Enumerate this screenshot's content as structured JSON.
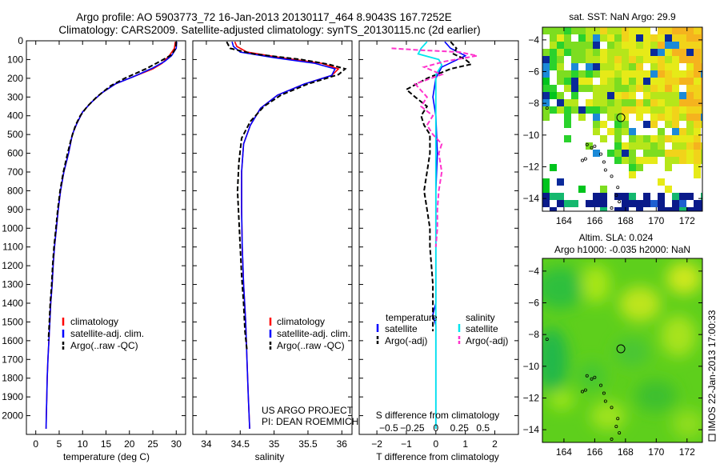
{
  "title_line1": "Argo profile: AO 5903773_72 16-Jan-2013 20130117_464 8.9043S 167.7252E",
  "title_line2": "Climatology: CARS2009. Satellite-adjusted climatology: synTS_20130115.nc (2d earlier)",
  "credit_line1": "US ARGO PROJECT",
  "credit_line2": "PI: DEAN ROEMMICH",
  "side_text": "IMOS 22-Jan-2013 17:00:33",
  "colors": {
    "clim": "#ff0000",
    "sat": "#0000ff",
    "argo": "#000000",
    "sat_s": "#00e5ee",
    "argo_s": "#ff33cc"
  },
  "chart_data": [
    {
      "id": "temperature",
      "type": "line",
      "xlabel": "temperature (deg C)",
      "xlim": [
        -2,
        32
      ],
      "ylim": [
        2100,
        0
      ],
      "xticks": [
        0,
        5,
        10,
        15,
        20,
        25,
        30
      ],
      "xtick_labels": [
        "0",
        "5",
        "10",
        "15",
        "20",
        "25",
        "30"
      ],
      "yticks": [
        0,
        100,
        200,
        300,
        400,
        500,
        600,
        700,
        800,
        900,
        1000,
        1100,
        1200,
        1300,
        1400,
        1500,
        1600,
        1700,
        1800,
        1900,
        2000
      ],
      "ytick_labels": [
        "0",
        "100",
        "200",
        "300",
        "400",
        "500",
        "600",
        "700",
        "800",
        "900",
        "1000",
        "1100",
        "1200",
        "1300",
        "1400",
        "1500",
        "1600",
        "1700",
        "1800",
        "1900",
        "2000"
      ],
      "legend": [
        "climatology",
        "satellite-adj. clim.",
        "Argo(..raw -QC)"
      ],
      "series": [
        {
          "name": "climatology",
          "style": "clim",
          "points": [
            [
              29.8,
              5
            ],
            [
              29.6,
              40
            ],
            [
              28.5,
              80
            ],
            [
              27,
              120
            ],
            [
              25,
              150
            ],
            [
              21,
              190
            ],
            [
              17,
              230
            ],
            [
              14,
              280
            ],
            [
              11.8,
              330
            ],
            [
              10,
              380
            ],
            [
              8.8,
              440
            ],
            [
              7.8,
              500
            ],
            [
              7,
              600
            ],
            [
              6,
              700
            ],
            [
              5.3,
              800
            ],
            [
              4.8,
              900
            ],
            [
              4.4,
              1000
            ],
            [
              4,
              1100
            ],
            [
              3.7,
              1200
            ],
            [
              3.5,
              1300
            ],
            [
              3.2,
              1400
            ],
            [
              3,
              1500
            ],
            [
              2.8,
              1600
            ],
            [
              2.6,
              1700
            ],
            [
              2.45,
              1800
            ],
            [
              2.35,
              1900
            ],
            [
              2.25,
              2000
            ],
            [
              2.2,
              2070
            ]
          ]
        },
        {
          "name": "satellite-adj. clim.",
          "style": "sat",
          "points": [
            [
              30.1,
              5
            ],
            [
              30,
              40
            ],
            [
              29,
              80
            ],
            [
              27.5,
              110
            ],
            [
              25,
              145
            ],
            [
              21,
              190
            ],
            [
              17,
              230
            ],
            [
              14,
              280
            ],
            [
              11.8,
              330
            ],
            [
              10,
              380
            ],
            [
              8.8,
              440
            ],
            [
              7.8,
              500
            ],
            [
              7,
              600
            ],
            [
              6,
              700
            ],
            [
              5.3,
              800
            ],
            [
              4.8,
              900
            ],
            [
              4.4,
              1000
            ],
            [
              4,
              1100
            ],
            [
              3.7,
              1200
            ],
            [
              3.5,
              1300
            ],
            [
              3.2,
              1400
            ],
            [
              3,
              1500
            ],
            [
              2.8,
              1600
            ],
            [
              2.6,
              1700
            ],
            [
              2.45,
              1800
            ],
            [
              2.35,
              1900
            ],
            [
              2.25,
              2000
            ],
            [
              2.2,
              2070
            ]
          ]
        },
        {
          "name": "Argo(..raw -QC)",
          "style": "argo",
          "points": [
            [
              30,
              5
            ],
            [
              29.9,
              40
            ],
            [
              29,
              75
            ],
            [
              26.5,
              110
            ],
            [
              23.5,
              150
            ],
            [
              19,
              200
            ],
            [
              16,
              240
            ],
            [
              13,
              300
            ],
            [
              11,
              350
            ],
            [
              9.5,
              400
            ],
            [
              8.5,
              450
            ],
            [
              7.6,
              520
            ],
            [
              6.8,
              600
            ],
            [
              5.9,
              700
            ],
            [
              5.2,
              800
            ],
            [
              4.7,
              900
            ],
            [
              4.3,
              1000
            ],
            [
              3.9,
              1100
            ],
            [
              3.6,
              1200
            ],
            [
              3.4,
              1300
            ],
            [
              3.1,
              1400
            ],
            [
              2.9,
              1500
            ],
            [
              2.7,
              1600
            ]
          ]
        }
      ]
    },
    {
      "id": "salinity",
      "type": "line",
      "xlabel": "salinity",
      "xlim": [
        33.8,
        36.15
      ],
      "ylim": [
        2100,
        0
      ],
      "xticks": [
        34,
        34.5,
        35,
        35.5,
        36
      ],
      "xtick_labels": [
        "34",
        "34.5",
        "35",
        "35.5",
        "36"
      ],
      "legend": [
        "climatology",
        "satellite-adj. clim.",
        "Argo(..raw -QC)"
      ],
      "series": [
        {
          "name": "climatology",
          "style": "clim",
          "points": [
            [
              34.42,
              5
            ],
            [
              34.45,
              30
            ],
            [
              34.6,
              60
            ],
            [
              35.1,
              90
            ],
            [
              35.7,
              120
            ],
            [
              35.95,
              150
            ],
            [
              35.85,
              185
            ],
            [
              35.45,
              230
            ],
            [
              35.05,
              290
            ],
            [
              34.8,
              360
            ],
            [
              34.65,
              450
            ],
            [
              34.55,
              550
            ],
            [
              34.52,
              700
            ],
            [
              34.52,
              900
            ],
            [
              34.53,
              1100
            ],
            [
              34.55,
              1300
            ],
            [
              34.58,
              1500
            ],
            [
              34.6,
              1700
            ],
            [
              34.62,
              1900
            ],
            [
              34.64,
              2070
            ]
          ]
        },
        {
          "name": "satellite-adj. clim.",
          "style": "sat",
          "points": [
            [
              34.38,
              5
            ],
            [
              34.4,
              30
            ],
            [
              34.5,
              60
            ],
            [
              35,
              90
            ],
            [
              35.6,
              120
            ],
            [
              35.9,
              150
            ],
            [
              35.85,
              185
            ],
            [
              35.45,
              230
            ],
            [
              35.05,
              290
            ],
            [
              34.8,
              360
            ],
            [
              34.65,
              450
            ],
            [
              34.55,
              550
            ],
            [
              34.52,
              700
            ],
            [
              34.52,
              900
            ],
            [
              34.53,
              1100
            ],
            [
              34.55,
              1300
            ],
            [
              34.58,
              1500
            ],
            [
              34.6,
              1700
            ],
            [
              34.62,
              1900
            ],
            [
              34.64,
              2070
            ]
          ]
        },
        {
          "name": "Argo(..raw -QC)",
          "style": "argo",
          "points": [
            [
              34.3,
              5
            ],
            [
              34.35,
              40
            ],
            [
              34.7,
              70
            ],
            [
              35.4,
              100
            ],
            [
              35.8,
              125
            ],
            [
              36.05,
              150
            ],
            [
              35.95,
              180
            ],
            [
              35.5,
              230
            ],
            [
              35.1,
              290
            ],
            [
              34.85,
              350
            ],
            [
              34.65,
              430
            ],
            [
              34.52,
              520
            ],
            [
              34.48,
              650
            ],
            [
              34.46,
              800
            ],
            [
              34.48,
              950
            ],
            [
              34.5,
              1100
            ],
            [
              34.52,
              1250
            ],
            [
              34.55,
              1400
            ],
            [
              34.57,
              1550
            ],
            [
              34.6,
              1650
            ]
          ]
        }
      ]
    },
    {
      "id": "difference",
      "type": "line",
      "xlabel": "T difference from climatology",
      "xlabel2": "S difference from climatology",
      "xlim": [
        -2.6,
        2.8
      ],
      "ylim": [
        2100,
        0
      ],
      "xticks": [
        -2,
        -1,
        0,
        1,
        2
      ],
      "xtick_labels": [
        "−2",
        "−1",
        "0",
        "1",
        "2"
      ],
      "sticks": [
        -1.6,
        -0.8,
        0,
        0.8,
        1.6
      ],
      "stick_labels": [
        "−0.5",
        "−0.25",
        "0",
        "0.25",
        "0.5"
      ],
      "legend_header": [
        "temperature",
        "salinity"
      ],
      "legend": [
        "satellite",
        "Argo(-adj)",
        "satellite",
        "Argo(-adj)"
      ],
      "series": [
        {
          "name": "temperature satellite",
          "style": "sat",
          "points": [
            [
              0.3,
              5
            ],
            [
              0.5,
              40
            ],
            [
              1.0,
              80
            ],
            [
              0.6,
              110
            ],
            [
              0.2,
              140
            ],
            [
              0,
              200
            ],
            [
              -0.1,
              300
            ],
            [
              0,
              400
            ],
            [
              0.05,
              600
            ],
            [
              0,
              800
            ],
            [
              0,
              1400
            ],
            [
              -0.1,
              1460
            ],
            [
              0,
              1520
            ],
            [
              0,
              2070
            ]
          ]
        },
        {
          "name": "temperature Argo(-adj)",
          "style": "argo",
          "points": [
            [
              0.5,
              5
            ],
            [
              0.7,
              40
            ],
            [
              0.6,
              70
            ],
            [
              1.0,
              100
            ],
            [
              1.2,
              125
            ],
            [
              0.5,
              150
            ],
            [
              -0.3,
              200
            ],
            [
              -1.0,
              260
            ],
            [
              -0.7,
              300
            ],
            [
              -0.3,
              350
            ],
            [
              -0.5,
              400
            ],
            [
              -0.4,
              450
            ],
            [
              -0.2,
              500
            ],
            [
              -0.2,
              600
            ],
            [
              -0.3,
              700
            ],
            [
              -0.4,
              800
            ],
            [
              -0.3,
              900
            ],
            [
              -0.2,
              1000
            ],
            [
              -0.2,
              1100
            ],
            [
              -0.15,
              1200
            ],
            [
              -0.1,
              1300
            ],
            [
              -0.1,
              1400
            ],
            [
              -0.1,
              1500
            ],
            [
              -0.1,
              1550
            ]
          ]
        },
        {
          "name": "salinity satellite",
          "style": "sat_s",
          "points": [
            [
              -0.3,
              5
            ],
            [
              -0.5,
              40
            ],
            [
              -0.6,
              70
            ],
            [
              0.1,
              100
            ],
            [
              0.2,
              130
            ],
            [
              0,
              180
            ],
            [
              0,
              400
            ],
            [
              0,
              700
            ],
            [
              0,
              1000
            ],
            [
              0,
              1500
            ],
            [
              0,
              2070
            ]
          ]
        },
        {
          "name": "salinity Argo(-adj)",
          "style": "argo_s",
          "points": [
            [
              -1.5,
              40
            ],
            [
              -0.5,
              50
            ],
            [
              0.8,
              60
            ],
            [
              1.4,
              80
            ],
            [
              0.3,
              110
            ],
            [
              -0.4,
              140
            ],
            [
              0.2,
              180
            ],
            [
              -0.7,
              230
            ],
            [
              -0.3,
              300
            ],
            [
              -0.5,
              350
            ],
            [
              -0.1,
              400
            ],
            [
              -0.3,
              450
            ],
            [
              -0.1,
              500
            ],
            [
              0.2,
              550
            ],
            [
              0.1,
              600
            ],
            [
              0.2,
              700
            ],
            [
              0.1,
              800
            ],
            [
              0.05,
              900
            ],
            [
              0.05,
              1000
            ],
            [
              0,
              1100
            ]
          ]
        }
      ]
    },
    {
      "id": "sst_map",
      "type": "heatmap",
      "title": "sat. SST: NaN Argo: 29.9",
      "xlim": [
        162.6,
        173
      ],
      "ylim": [
        -14.8,
        -3.2
      ],
      "xticks": [
        164,
        166,
        168,
        170,
        172
      ],
      "xtick_labels": [
        "164",
        "166",
        "168",
        "170",
        "172"
      ],
      "yticks": [
        -4,
        -6,
        -8,
        -10,
        -12,
        -14
      ],
      "ytick_labels": [
        "−4",
        "−6",
        "−8",
        "−10",
        "−12",
        "−14"
      ],
      "float_position": [
        167.7,
        -8.9
      ]
    },
    {
      "id": "sla_map",
      "type": "heatmap",
      "title_line1": "Altim. SLA: 0.024",
      "title_line2": "Argo h1000: -0.035 h2000: NaN",
      "xlim": [
        162.6,
        173
      ],
      "ylim": [
        -14.8,
        -3.2
      ],
      "xticks": [
        164,
        166,
        168,
        170,
        172
      ],
      "xtick_labels": [
        "164",
        "166",
        "168",
        "170",
        "172"
      ],
      "yticks": [
        -4,
        -6,
        -8,
        -10,
        -12,
        -14
      ],
      "ytick_labels": [
        "−4",
        "−6",
        "−8",
        "−10",
        "−12",
        "−14"
      ],
      "float_position": [
        167.7,
        -8.9
      ]
    }
  ]
}
